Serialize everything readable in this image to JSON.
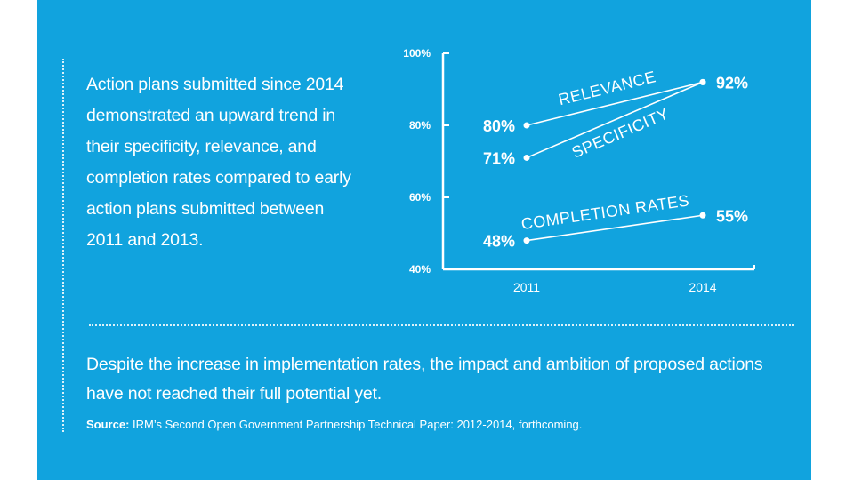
{
  "lead_text": "Action plans submitted since 2014 demonstrated an upward trend in their specificity, relevance, and completion rates compared to early action plans submitted between 2011 and 2013.",
  "note_text": "Despite the increase in implementation rates, the impact and ambition of proposed actions have not reached their full potential yet.",
  "source": {
    "label": "Source:",
    "text": "IRM’s Second Open Government Partnership Technical Paper: 2012-2014, forthcoming."
  },
  "colors": {
    "background": "#11a3de",
    "foreground": "#ffffff"
  },
  "chart_data": {
    "type": "line",
    "x": [
      "2011",
      "2014"
    ],
    "ylim": [
      40,
      100
    ],
    "yticks": [
      40,
      60,
      80,
      100
    ],
    "ytick_labels": [
      "40%",
      "60%",
      "80%",
      "100%"
    ],
    "series": [
      {
        "name": "RELEVANCE",
        "values": [
          80,
          92
        ],
        "value_labels": [
          "80%",
          "92%"
        ]
      },
      {
        "name": "SPECIFICITY",
        "values": [
          71,
          92
        ],
        "value_labels": [
          "71%",
          "92%"
        ]
      },
      {
        "name": "COMPLETION RATES",
        "values": [
          48,
          55
        ],
        "value_labels": [
          "48%",
          "55%"
        ]
      }
    ]
  }
}
